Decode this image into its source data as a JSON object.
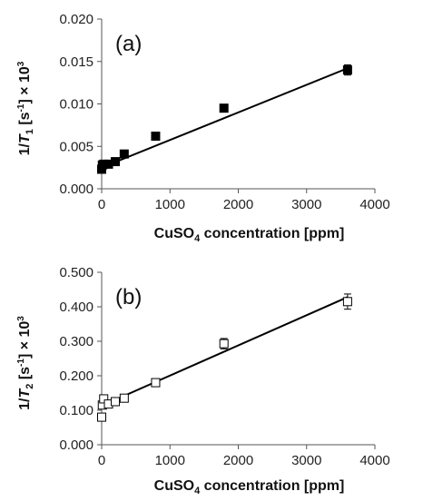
{
  "chart_data": [
    {
      "type": "scatter",
      "panel_label": "(a)",
      "xlabel": {
        "main": "CuSO",
        "sub": "4",
        "rest": " concentration [ppm]"
      },
      "ylabel": {
        "pre": "1/",
        "var": "T",
        "sub": "1",
        "mid": " [s",
        "sup": "-1",
        "post": "] × 10",
        "sup2": "3"
      },
      "xlim": [
        0,
        4000
      ],
      "ylim": [
        0,
        0.02
      ],
      "x_ticks": [
        "0",
        "1000",
        "2000",
        "3000",
        "4000"
      ],
      "x_tick_values": [
        0,
        1000,
        2000,
        3000,
        4000
      ],
      "y_ticks": [
        "0.000",
        "0.005",
        "0.010",
        "0.015",
        "0.020"
      ],
      "y_tick_values": [
        0,
        0.005,
        0.01,
        0.015,
        0.02
      ],
      "marker": "filled-square",
      "points": [
        {
          "x": 0,
          "y": 0.0023
        },
        {
          "x": 10,
          "y": 0.0028
        },
        {
          "x": 30,
          "y": 0.0029
        },
        {
          "x": 100,
          "y": 0.0029
        },
        {
          "x": 200,
          "y": 0.0032
        },
        {
          "x": 330,
          "y": 0.0041
        },
        {
          "x": 790,
          "y": 0.0062
        },
        {
          "x": 1790,
          "y": 0.0095
        },
        {
          "x": 3600,
          "y": 0.014,
          "err": 0.0006
        }
      ],
      "fit_line": {
        "x": [
          0,
          3600
        ],
        "y": [
          0.0025,
          0.0142
        ]
      }
    },
    {
      "type": "scatter",
      "panel_label": "(b)",
      "xlabel": {
        "main": "CuSO",
        "sub": "4",
        "rest": " concentration [ppm]"
      },
      "ylabel": {
        "pre": "1/",
        "var": "T",
        "sub": "2",
        "mid": " [s",
        "sup": "-1",
        "post": "] × 10",
        "sup2": "3"
      },
      "xlim": [
        0,
        4000
      ],
      "ylim": [
        0,
        0.5
      ],
      "x_ticks": [
        "0",
        "1000",
        "2000",
        "3000",
        "4000"
      ],
      "x_tick_values": [
        0,
        1000,
        2000,
        3000,
        4000
      ],
      "y_ticks": [
        "0.000",
        "0.100",
        "0.200",
        "0.300",
        "0.400",
        "0.500"
      ],
      "y_tick_values": [
        0,
        0.1,
        0.2,
        0.3,
        0.4,
        0.5
      ],
      "marker": "open-square",
      "points": [
        {
          "x": 0,
          "y": 0.08
        },
        {
          "x": 10,
          "y": 0.115
        },
        {
          "x": 30,
          "y": 0.133
        },
        {
          "x": 100,
          "y": 0.118
        },
        {
          "x": 200,
          "y": 0.125
        },
        {
          "x": 330,
          "y": 0.135
        },
        {
          "x": 790,
          "y": 0.18
        },
        {
          "x": 1790,
          "y": 0.293,
          "err": 0.015
        },
        {
          "x": 3600,
          "y": 0.415,
          "err": 0.022
        }
      ],
      "fit_line": {
        "x": [
          0,
          3600
        ],
        "y": [
          0.113,
          0.428
        ]
      }
    }
  ]
}
